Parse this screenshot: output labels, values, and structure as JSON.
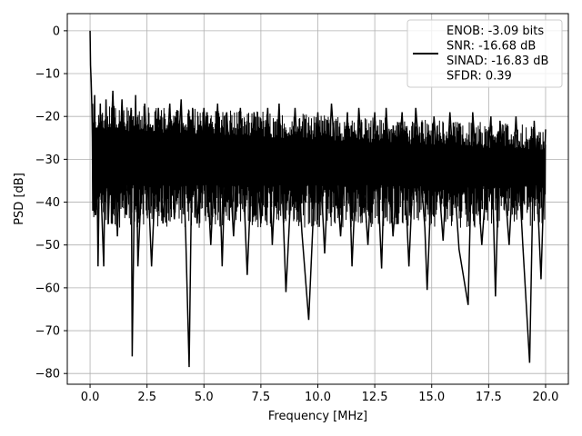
{
  "chart_data": {
    "type": "line",
    "title": "",
    "xlabel": "Frequency [MHz]",
    "ylabel": "PSD [dB]",
    "xlim": [
      -1.0,
      21.0
    ],
    "ylim": [
      -82.5,
      4
    ],
    "grid": true,
    "x_ticks": [
      0.0,
      2.5,
      5.0,
      7.5,
      10.0,
      12.5,
      15.0,
      17.5,
      20.0
    ],
    "x_tick_labels": [
      "0.0",
      "2.5",
      "5.0",
      "7.5",
      "10.0",
      "12.5",
      "15.0",
      "17.5",
      "20.0"
    ],
    "y_ticks": [
      0,
      -10,
      -20,
      -30,
      -40,
      -50,
      -60,
      -70,
      -80
    ],
    "y_tick_labels": [
      "0",
      "−10",
      "−20",
      "−30",
      "−40",
      "−50",
      "−60",
      "−70",
      "−80"
    ],
    "legend": {
      "placement": "upper right",
      "entries": [
        "ENOB: -3.09 bits",
        "SNR: -16.68 dB",
        "SINAD: -16.83 dB",
        "SFDR: 0.39"
      ]
    },
    "series": [
      {
        "color": "#000000",
        "points": [
          [
            0.0,
            0.0
          ],
          [
            0.02,
            -8
          ],
          [
            0.05,
            -12
          ],
          [
            0.08,
            -18
          ],
          [
            0.1,
            -25
          ],
          [
            0.12,
            -42
          ],
          [
            0.2,
            -15
          ],
          [
            0.25,
            -43
          ],
          [
            0.3,
            -30
          ],
          [
            0.35,
            -55
          ],
          [
            0.45,
            -17
          ],
          [
            0.5,
            -40
          ],
          [
            0.6,
            -55
          ],
          [
            0.7,
            -16
          ],
          [
            0.8,
            -45
          ],
          [
            1.0,
            -14
          ],
          [
            1.2,
            -48
          ],
          [
            1.4,
            -16
          ],
          [
            1.6,
            -43
          ],
          [
            1.8,
            -18
          ],
          [
            1.85,
            -76
          ],
          [
            2.0,
            -15
          ],
          [
            2.1,
            -55
          ],
          [
            2.4,
            -17
          ],
          [
            2.6,
            -42
          ],
          [
            2.7,
            -55
          ],
          [
            3.0,
            -18
          ],
          [
            3.2,
            -45
          ],
          [
            3.5,
            -17
          ],
          [
            3.7,
            -44
          ],
          [
            4.0,
            -16
          ],
          [
            4.2,
            -48
          ],
          [
            4.35,
            -78.5
          ],
          [
            4.5,
            -18
          ],
          [
            4.7,
            -45
          ],
          [
            5.0,
            -18
          ],
          [
            5.3,
            -50
          ],
          [
            5.6,
            -17
          ],
          [
            5.8,
            -55
          ],
          [
            6.0,
            -19
          ],
          [
            6.3,
            -48
          ],
          [
            6.6,
            -18
          ],
          [
            6.9,
            -57
          ],
          [
            7.2,
            -19
          ],
          [
            7.5,
            -45
          ],
          [
            7.8,
            -18
          ],
          [
            8.0,
            -50
          ],
          [
            8.3,
            -17
          ],
          [
            8.6,
            -61
          ],
          [
            9.0,
            -18
          ],
          [
            9.3,
            -47
          ],
          [
            9.6,
            -67.5
          ],
          [
            10.0,
            -19
          ],
          [
            10.3,
            -52
          ],
          [
            10.6,
            -17
          ],
          [
            11.0,
            -48
          ],
          [
            11.3,
            -19
          ],
          [
            11.5,
            -55
          ],
          [
            11.8,
            -18
          ],
          [
            12.2,
            -50
          ],
          [
            12.5,
            -19
          ],
          [
            12.8,
            -55.5
          ],
          [
            13.0,
            -18
          ],
          [
            13.3,
            -48
          ],
          [
            13.7,
            -19
          ],
          [
            14.0,
            -55
          ],
          [
            14.3,
            -18
          ],
          [
            14.7,
            -46
          ],
          [
            14.8,
            -60.5
          ],
          [
            15.1,
            -20
          ],
          [
            15.5,
            -49
          ],
          [
            15.8,
            -19
          ],
          [
            16.2,
            -51
          ],
          [
            16.6,
            -64
          ],
          [
            16.8,
            -19
          ],
          [
            17.2,
            -50
          ],
          [
            17.6,
            -20
          ],
          [
            17.8,
            -62
          ],
          [
            18.0,
            -21
          ],
          [
            18.4,
            -50
          ],
          [
            18.7,
            -20
          ],
          [
            19.0,
            -50
          ],
          [
            19.3,
            -77.5
          ],
          [
            19.5,
            -21
          ],
          [
            19.8,
            -58
          ],
          [
            20.0,
            -23
          ]
        ]
      }
    ]
  }
}
